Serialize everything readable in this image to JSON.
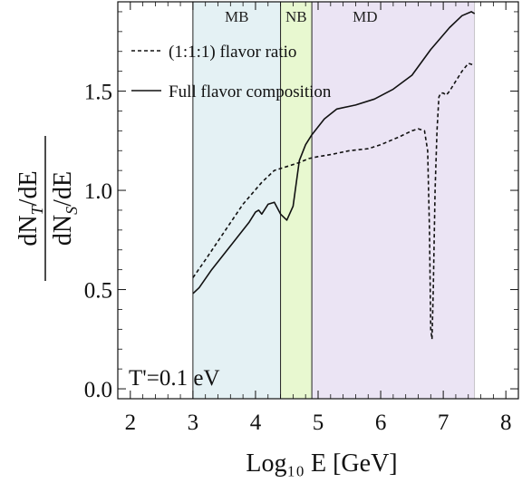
{
  "chart_data": {
    "type": "line",
    "xlabel": "Log₁₀ E [GeV]",
    "ylabel_numerator": "dN",
    "ylabel_numerator_sub": "T",
    "ylabel_numerator_tail": "/dE",
    "ylabel_denominator": "dN",
    "ylabel_denominator_sub": "S",
    "ylabel_denominator_tail": "/dE",
    "xlim": [
      1.8,
      8.2
    ],
    "ylim": [
      -0.05,
      1.95
    ],
    "x_ticks": [
      2,
      3,
      4,
      5,
      6,
      7,
      8
    ],
    "y_ticks": [
      0.0,
      0.5,
      1.0,
      1.5
    ],
    "y_tick_labels": [
      "0.0",
      "0.5",
      "1.0",
      "1.5"
    ],
    "annotation": "T'=0.1 eV",
    "regions": [
      {
        "label": "MB",
        "x_start": 3.0,
        "x_end": 4.4,
        "color": "#e4f1f4"
      },
      {
        "label": "NB",
        "x_start": 4.4,
        "x_end": 4.9,
        "color": "#e8f8d0"
      },
      {
        "label": "MD",
        "x_start": 4.9,
        "x_end": 7.5,
        "color": "#ebe4f4"
      }
    ],
    "legend_position": "top-left",
    "series": [
      {
        "name": "(1:1:1) flavor ratio",
        "style": "dashed",
        "x": [
          3.0,
          3.2,
          3.5,
          3.8,
          4.1,
          4.3,
          4.5,
          4.7,
          4.85,
          5.0,
          5.2,
          5.5,
          5.8,
          6.0,
          6.3,
          6.5,
          6.6,
          6.7,
          6.75,
          6.78,
          6.8,
          6.82,
          6.84,
          6.87,
          6.9,
          6.93,
          6.96,
          7.0,
          7.05,
          7.1,
          7.2,
          7.3,
          7.4,
          7.5
        ],
        "y": [
          0.56,
          0.65,
          0.79,
          0.93,
          1.04,
          1.1,
          1.12,
          1.14,
          1.16,
          1.17,
          1.18,
          1.2,
          1.21,
          1.23,
          1.27,
          1.3,
          1.31,
          1.3,
          1.2,
          0.8,
          0.3,
          0.25,
          0.5,
          1.0,
          1.3,
          1.47,
          1.49,
          1.49,
          1.48,
          1.5,
          1.55,
          1.6,
          1.64,
          1.63
        ]
      },
      {
        "name": "Full flavor composition",
        "style": "solid",
        "x": [
          3.0,
          3.1,
          3.3,
          3.6,
          3.9,
          4.0,
          4.05,
          4.1,
          4.2,
          4.3,
          4.4,
          4.5,
          4.6,
          4.7,
          4.8,
          4.9,
          5.0,
          5.1,
          5.3,
          5.6,
          5.9,
          6.2,
          6.5,
          6.8,
          7.1,
          7.3,
          7.45,
          7.5
        ],
        "y": [
          0.48,
          0.51,
          0.6,
          0.72,
          0.84,
          0.89,
          0.9,
          0.88,
          0.93,
          0.94,
          0.88,
          0.85,
          0.92,
          1.15,
          1.23,
          1.28,
          1.32,
          1.36,
          1.41,
          1.43,
          1.46,
          1.51,
          1.58,
          1.71,
          1.82,
          1.88,
          1.9,
          1.89
        ]
      }
    ]
  }
}
